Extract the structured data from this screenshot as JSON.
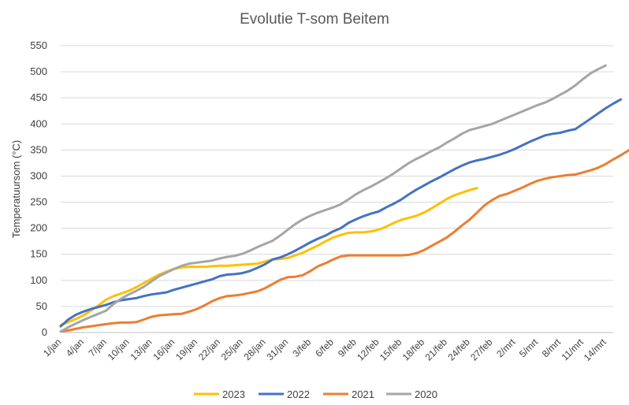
{
  "chart_data": {
    "type": "line",
    "title": "Evolutie T-som Beitem",
    "ylabel": "Temperatuursom (°C)",
    "xlabel": "",
    "ylim": [
      0,
      550
    ],
    "ytick_step": 50,
    "grid": true,
    "legend_position": "bottom",
    "x_tick_labels": [
      "1/jan",
      "4/jan",
      "7/jan",
      "10/jan",
      "13/jan",
      "16/jan",
      "19/jan",
      "22/jan",
      "25/jan",
      "28/jan",
      "31/jan",
      "3/feb",
      "6/feb",
      "9/feb",
      "12/feb",
      "15/feb",
      "18/feb",
      "21/feb",
      "24/feb",
      "27/feb",
      "2/mrt",
      "5/mrt",
      "8/mrt",
      "11/mrt",
      "14/mrt"
    ],
    "series": [
      {
        "name": "2023",
        "color": "#FFC000",
        "values": [
          14,
          20,
          26,
          33,
          42,
          52,
          63,
          70,
          75,
          80,
          87,
          95,
          103,
          111,
          117,
          122,
          125,
          126,
          126,
          126,
          127,
          128,
          128,
          129,
          130,
          131,
          132,
          136,
          140,
          141,
          143,
          148,
          153,
          160,
          167,
          175,
          182,
          187,
          191,
          192,
          192,
          194,
          197,
          203,
          210,
          216,
          220,
          224,
          230,
          238,
          247,
          256,
          263,
          268,
          273,
          277
        ]
      },
      {
        "name": "2022",
        "color": "#4472C4",
        "values": [
          12,
          25,
          34,
          40,
          45,
          49,
          53,
          58,
          62,
          64,
          66,
          70,
          73,
          75,
          77,
          82,
          86,
          90,
          94,
          98,
          102,
          108,
          111,
          112,
          114,
          118,
          124,
          131,
          140,
          144,
          150,
          157,
          165,
          173,
          180,
          186,
          194,
          200,
          210,
          217,
          223,
          228,
          232,
          240,
          247,
          255,
          265,
          274,
          282,
          290,
          297,
          305,
          313,
          320,
          326,
          330,
          333,
          337,
          341,
          346,
          352,
          359,
          366,
          372,
          378,
          381,
          383,
          387,
          390,
          400,
          410,
          420,
          430,
          439,
          447
        ]
      },
      {
        "name": "2021",
        "color": "#ED7D31",
        "values": [
          2,
          4,
          7,
          10,
          12,
          14,
          16,
          18,
          19,
          19,
          20,
          25,
          30,
          33,
          34,
          35,
          36,
          40,
          45,
          52,
          60,
          66,
          70,
          71,
          73,
          76,
          79,
          85,
          93,
          101,
          106,
          107,
          110,
          118,
          127,
          133,
          140,
          146,
          148,
          148,
          148,
          148,
          148,
          148,
          148,
          148,
          149,
          152,
          158,
          166,
          174,
          182,
          193,
          205,
          216,
          230,
          244,
          254,
          262,
          266,
          272,
          278,
          285,
          291,
          295,
          298,
          300,
          302,
          303,
          307,
          311,
          316,
          323,
          332,
          340,
          349,
          358
        ]
      },
      {
        "name": "2020",
        "color": "#A5A5A5",
        "values": [
          2,
          10,
          17,
          24,
          30,
          36,
          42,
          55,
          65,
          73,
          80,
          88,
          98,
          108,
          115,
          122,
          128,
          132,
          134,
          136,
          138,
          142,
          145,
          147,
          151,
          157,
          164,
          170,
          176,
          186,
          197,
          208,
          217,
          224,
          230,
          235,
          240,
          246,
          255,
          265,
          273,
          280,
          288,
          296,
          305,
          315,
          325,
          333,
          340,
          348,
          355,
          364,
          372,
          381,
          388,
          392,
          396,
          400,
          406,
          412,
          418,
          424,
          430,
          436,
          441,
          448,
          456,
          464,
          474,
          486,
          497,
          505,
          512
        ]
      }
    ]
  }
}
